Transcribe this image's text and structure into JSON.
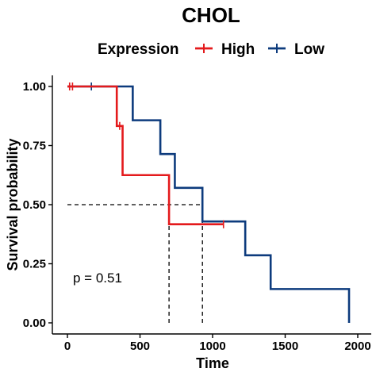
{
  "chart_data": {
    "type": "line",
    "subtype": "kaplan-meier",
    "title": "CHOL",
    "xlabel": "Time",
    "ylabel": "Survival probability",
    "xlim": [
      0,
      2000
    ],
    "ylim": [
      0,
      1
    ],
    "xticks": [
      0,
      500,
      1000,
      1500,
      2000
    ],
    "yticks": [
      0,
      0.25,
      0.5,
      0.75,
      1.0
    ],
    "ytick_labels": [
      "0.00",
      "0.25",
      "0.50",
      "0.75",
      "1.00"
    ],
    "legend": {
      "title": "Expression",
      "position": "top",
      "items": [
        {
          "label": "High",
          "color": "#E41A1C"
        },
        {
          "label": "Low",
          "color": "#0D3B7D"
        }
      ]
    },
    "series": [
      {
        "name": "High",
        "color": "#E41A1C",
        "steps": [
          [
            0,
            1.0
          ],
          [
            340,
            0.833
          ],
          [
            380,
            0.625
          ],
          [
            700,
            0.417
          ],
          [
            1075,
            0.417
          ]
        ],
        "censored": [
          [
            15,
            1.0
          ],
          [
            35,
            1.0
          ],
          [
            360,
            0.833
          ],
          [
            1075,
            0.417
          ]
        ]
      },
      {
        "name": "Low",
        "color": "#0D3B7D",
        "steps": [
          [
            0,
            1.0
          ],
          [
            450,
            0.857
          ],
          [
            640,
            0.714
          ],
          [
            740,
            0.571
          ],
          [
            930,
            0.429
          ],
          [
            1225,
            0.286
          ],
          [
            1400,
            0.143
          ],
          [
            1940,
            0.0
          ]
        ],
        "censored": [
          [
            165,
            1.0
          ]
        ]
      }
    ],
    "median_lines": {
      "y": 0.5,
      "x": [
        700,
        930
      ],
      "style": "dashed"
    },
    "annotation": "p = 0.51"
  }
}
